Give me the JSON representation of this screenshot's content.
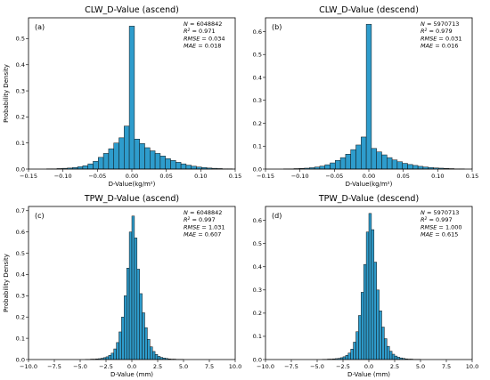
{
  "chart_data": [
    {
      "type": "bar",
      "panel": "(a)",
      "title": "CLW_D-Value (ascend)",
      "xlabel": "D-Value(kg/m²)",
      "ylabel": "Probability Density",
      "xlim": [
        -0.15,
        0.15
      ],
      "ylim": [
        0,
        0.58
      ],
      "xticks": [
        -0.15,
        -0.1,
        -0.05,
        0.0,
        0.05,
        0.1,
        0.15
      ],
      "xtick_labels": [
        "−0.15",
        "−0.10",
        "−0.05",
        "0.00",
        "0.05",
        "0.10",
        "0.15"
      ],
      "yticks": [
        0.0,
        0.1,
        0.2,
        0.3,
        0.4,
        0.5
      ],
      "ytick_labels": [
        "0.0",
        "0.1",
        "0.2",
        "0.3",
        "0.4",
        "0.5"
      ],
      "grid": false,
      "bin_width": 0.0075,
      "bins_x": [
        -0.1425,
        -0.135,
        -0.1275,
        -0.12,
        -0.1125,
        -0.105,
        -0.0975,
        -0.09,
        -0.0825,
        -0.075,
        -0.0675,
        -0.06,
        -0.0525,
        -0.045,
        -0.0375,
        -0.03,
        -0.0225,
        -0.015,
        -0.0075,
        0.0,
        0.0075,
        0.015,
        0.0225,
        0.03,
        0.0375,
        0.045,
        0.0525,
        0.06,
        0.0675,
        0.075,
        0.0825,
        0.09,
        0.0975,
        0.105,
        0.1125,
        0.12,
        0.1275,
        0.135,
        0.1425
      ],
      "values": [
        0.0,
        0.0,
        0.0,
        0.001,
        0.001,
        0.002,
        0.003,
        0.004,
        0.006,
        0.009,
        0.013,
        0.02,
        0.03,
        0.045,
        0.06,
        0.078,
        0.1,
        0.12,
        0.165,
        0.548,
        0.115,
        0.098,
        0.082,
        0.07,
        0.06,
        0.05,
        0.04,
        0.033,
        0.026,
        0.02,
        0.015,
        0.011,
        0.008,
        0.006,
        0.004,
        0.003,
        0.002,
        0.001,
        0.001
      ],
      "stats": {
        "N": "6048842",
        "R2": "0.971",
        "RMSE": "0.034",
        "MAE": "0.018"
      }
    },
    {
      "type": "bar",
      "panel": "(b)",
      "title": "CLW_D-Value (descend)",
      "xlabel": "D-Value(kg/m²)",
      "ylabel": "",
      "xlim": [
        -0.15,
        0.15
      ],
      "ylim": [
        0,
        0.66
      ],
      "xticks": [
        -0.15,
        -0.1,
        -0.05,
        0.0,
        0.05,
        0.1,
        0.15
      ],
      "xtick_labels": [
        "−0.15",
        "−0.10",
        "−0.05",
        "0.00",
        "0.05",
        "0.10",
        "0.15"
      ],
      "yticks": [
        0.0,
        0.1,
        0.2,
        0.3,
        0.4,
        0.5,
        0.6
      ],
      "ytick_labels": [
        "0.0",
        "0.1",
        "0.2",
        "0.3",
        "0.4",
        "0.5",
        "0.6"
      ],
      "grid": false,
      "bin_width": 0.0075,
      "bins_x": [
        -0.1425,
        -0.135,
        -0.1275,
        -0.12,
        -0.1125,
        -0.105,
        -0.0975,
        -0.09,
        -0.0825,
        -0.075,
        -0.0675,
        -0.06,
        -0.0525,
        -0.045,
        -0.0375,
        -0.03,
        -0.0225,
        -0.015,
        -0.0075,
        0.0,
        0.0075,
        0.015,
        0.0225,
        0.03,
        0.0375,
        0.045,
        0.0525,
        0.06,
        0.0675,
        0.075,
        0.0825,
        0.09,
        0.0975,
        0.105,
        0.1125,
        0.12,
        0.1275,
        0.135,
        0.1425
      ],
      "values": [
        0.0,
        0.0,
        0.0,
        0.001,
        0.001,
        0.002,
        0.003,
        0.004,
        0.006,
        0.009,
        0.013,
        0.019,
        0.027,
        0.038,
        0.05,
        0.065,
        0.085,
        0.105,
        0.14,
        0.632,
        0.09,
        0.075,
        0.062,
        0.05,
        0.04,
        0.032,
        0.025,
        0.02,
        0.016,
        0.012,
        0.009,
        0.007,
        0.005,
        0.004,
        0.003,
        0.002,
        0.001,
        0.001,
        0.0
      ],
      "stats": {
        "N": "5970713",
        "R2": "0.979",
        "RMSE": "0.031",
        "MAE": "0.016"
      }
    },
    {
      "type": "bar",
      "panel": "(c)",
      "title": "TPW_D-Value (ascend)",
      "xlabel": "D-Value (mm)",
      "ylabel": "Probability Density",
      "xlim": [
        -10.0,
        10.0
      ],
      "ylim": [
        0,
        0.72
      ],
      "xticks": [
        -10.0,
        -7.5,
        -5.0,
        -2.5,
        0.0,
        2.5,
        5.0,
        7.5,
        10.0
      ],
      "xtick_labels": [
        "−10.0",
        "−7.5",
        "−5.0",
        "−2.5",
        "0.0",
        "2.5",
        "5.0",
        "7.5",
        "10.0"
      ],
      "yticks": [
        0.0,
        0.1,
        0.2,
        0.3,
        0.4,
        0.5,
        0.6,
        0.7
      ],
      "ytick_labels": [
        "0.0",
        "0.1",
        "0.2",
        "0.3",
        "0.4",
        "0.5",
        "0.6",
        "0.7"
      ],
      "grid": false,
      "bin_width": 0.25,
      "bins_x": [
        -4.375,
        -4.125,
        -3.875,
        -3.625,
        -3.375,
        -3.125,
        -2.875,
        -2.625,
        -2.375,
        -2.125,
        -1.875,
        -1.625,
        -1.375,
        -1.125,
        -0.875,
        -0.625,
        -0.375,
        -0.125,
        0.125,
        0.375,
        0.625,
        0.875,
        1.125,
        1.375,
        1.625,
        1.875,
        2.125,
        2.375,
        2.625,
        2.875,
        3.125,
        3.375,
        3.625,
        3.875,
        4.125,
        4.375,
        4.625,
        4.875
      ],
      "values": [
        0.001,
        0.001,
        0.002,
        0.002,
        0.003,
        0.004,
        0.006,
        0.009,
        0.013,
        0.02,
        0.03,
        0.05,
        0.08,
        0.13,
        0.2,
        0.3,
        0.43,
        0.6,
        0.675,
        0.572,
        0.425,
        0.31,
        0.22,
        0.15,
        0.095,
        0.06,
        0.038,
        0.024,
        0.015,
        0.01,
        0.007,
        0.005,
        0.003,
        0.002,
        0.002,
        0.001,
        0.001,
        0.001
      ],
      "stats": {
        "N": "6048842",
        "R2": "0.997",
        "RMSE": "1.031",
        "MAE": "0.607"
      }
    },
    {
      "type": "bar",
      "panel": "(d)",
      "title": "TPW_D-Value (descend)",
      "xlabel": "D-Value (mm)",
      "ylabel": "",
      "xlim": [
        -10.0,
        10.0
      ],
      "ylim": [
        0,
        0.66
      ],
      "xticks": [
        -10.0,
        -7.5,
        -5.0,
        -2.5,
        0.0,
        2.5,
        5.0,
        7.5,
        10.0
      ],
      "xtick_labels": [
        "−10.0",
        "−7.5",
        "−5.0",
        "−2.5",
        "0.0",
        "2.5",
        "5.0",
        "7.5",
        "10.0"
      ],
      "yticks": [
        0.0,
        0.1,
        0.2,
        0.3,
        0.4,
        0.5,
        0.6
      ],
      "ytick_labels": [
        "0.0",
        "0.1",
        "0.2",
        "0.3",
        "0.4",
        "0.5",
        "0.6"
      ],
      "grid": false,
      "bin_width": 0.25,
      "bins_x": [
        -4.375,
        -4.125,
        -3.875,
        -3.625,
        -3.375,
        -3.125,
        -2.875,
        -2.625,
        -2.375,
        -2.125,
        -1.875,
        -1.625,
        -1.375,
        -1.125,
        -0.875,
        -0.625,
        -0.375,
        -0.125,
        0.125,
        0.375,
        0.625,
        0.875,
        1.125,
        1.375,
        1.625,
        1.875,
        2.125,
        2.375,
        2.625,
        2.875,
        3.125,
        3.375,
        3.625,
        3.875,
        4.125,
        4.375,
        4.625,
        4.875
      ],
      "values": [
        0.001,
        0.001,
        0.002,
        0.002,
        0.003,
        0.004,
        0.005,
        0.008,
        0.012,
        0.018,
        0.028,
        0.045,
        0.075,
        0.12,
        0.19,
        0.29,
        0.41,
        0.55,
        0.63,
        0.56,
        0.42,
        0.3,
        0.21,
        0.14,
        0.09,
        0.057,
        0.036,
        0.023,
        0.015,
        0.01,
        0.007,
        0.005,
        0.003,
        0.002,
        0.002,
        0.001,
        0.001,
        0.001
      ],
      "stats": {
        "N": "5970713",
        "R2": "0.997",
        "RMSE": "1.000",
        "MAE": "0.615"
      }
    }
  ]
}
